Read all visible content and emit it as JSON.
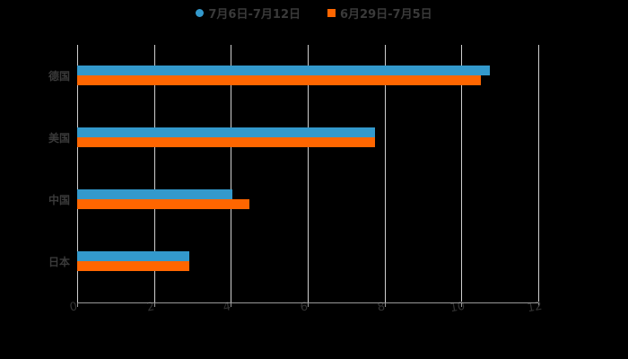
{
  "chart_data": {
    "type": "bar",
    "orientation": "horizontal",
    "title": "",
    "categories": [
      "德国",
      "美国",
      "中国",
      "日本"
    ],
    "series": [
      {
        "name": "7月6日-7月12日",
        "color": "#3399cc",
        "values": [
          10.74,
          7.74,
          4.05,
          2.92
        ]
      },
      {
        "name": "6月29日-7月5日",
        "color": "#ff6600",
        "values": [
          10.5,
          7.74,
          4.49,
          2.92
        ]
      }
    ],
    "xlabel": "",
    "ylabel": "",
    "xlim": [
      0,
      12
    ],
    "xticks": [
      "0",
      "2",
      "4",
      "6",
      "8",
      "10",
      "12"
    ],
    "grid": true,
    "legend_position": "top"
  },
  "legend": {
    "items": [
      {
        "label": "7月6日-7月12日",
        "color": "#3399cc"
      },
      {
        "label": "6月29日-7月5日",
        "color": "#ff6600"
      }
    ]
  }
}
